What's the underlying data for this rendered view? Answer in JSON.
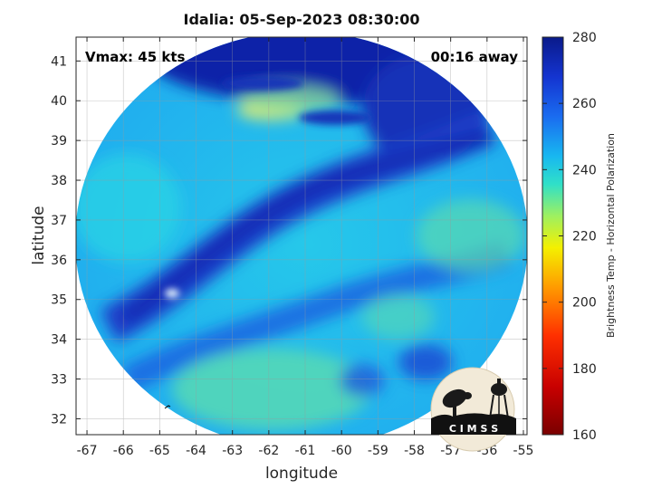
{
  "title": "Idalia: 05-Sep-2023 08:30:00",
  "vmax_label": "Vmax: 45 kts",
  "away_label": "00:16 away",
  "logo_text": "C I M S S",
  "map": {
    "xlabel": "longitude",
    "ylabel": "latitude",
    "xticks": [
      "-67",
      "-66",
      "-65",
      "-64",
      "-63",
      "-62",
      "-61",
      "-60",
      "-59",
      "-58",
      "-57",
      "-56",
      "-55"
    ],
    "yticks": [
      "41",
      "40",
      "39",
      "38",
      "37",
      "36",
      "35",
      "34",
      "33",
      "32"
    ],
    "xlim": [
      -67.3,
      -54.9
    ],
    "ylim": [
      31.6,
      41.6
    ],
    "grid": true
  },
  "colorbar": {
    "label": "Brightness Temp - Horizontal Polarization",
    "ticks": [
      "280",
      "260",
      "240",
      "220",
      "200",
      "180",
      "160"
    ],
    "range": [
      160,
      280
    ]
  },
  "colors": {
    "deep_blue": "#0a1a9a",
    "blue": "#1e50e0",
    "light_blue": "#1fa8f0",
    "cyan": "#26d2e6",
    "green": "#7fe09a",
    "yellow": "#f4f060",
    "red": "#c81010",
    "dark_red": "#7a0000"
  }
}
